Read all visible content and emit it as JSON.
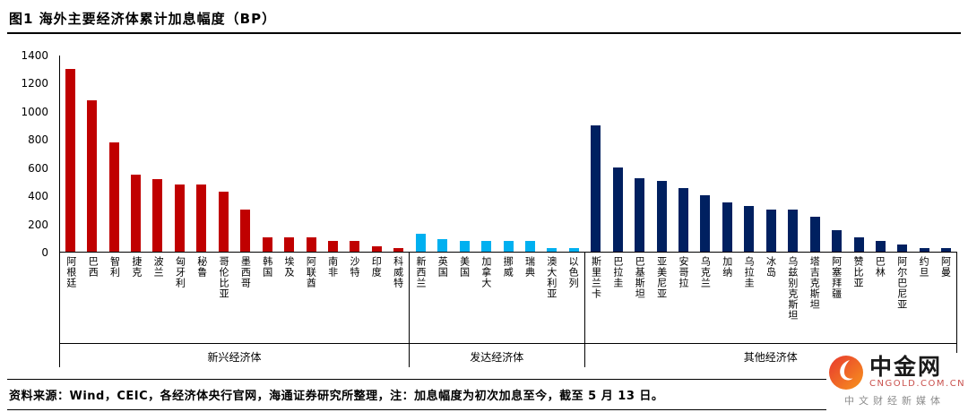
{
  "title": "图1  海外主要经济体累计加息幅度（BP）",
  "chart_data": {
    "type": "bar",
    "title": "图1  海外主要经济体累计加息幅度（BP）",
    "unit": "BP",
    "ylim": [
      0,
      1400
    ],
    "yticks": [
      0,
      200,
      400,
      600,
      800,
      1000,
      1200,
      1400
    ],
    "grid": false,
    "legend": "none",
    "groups": [
      {
        "name": "新兴经济体",
        "color": "#C00000",
        "categories": [
          "阿根廷",
          "巴西",
          "智利",
          "捷克",
          "波兰",
          "匈牙利",
          "秘鲁",
          "哥伦比亚",
          "墨西哥",
          "韩国",
          "埃及",
          "阿联酋",
          "南非",
          "沙特",
          "印度",
          "科威特"
        ],
        "values": [
          1300,
          1075,
          775,
          550,
          515,
          480,
          475,
          425,
          300,
          100,
          100,
          100,
          75,
          75,
          40,
          25
        ]
      },
      {
        "name": "发达经济体",
        "color": "#00B0F0",
        "categories": [
          "新西兰",
          "英国",
          "美国",
          "加拿大",
          "挪威",
          "瑞典",
          "澳大利亚",
          "以色列"
        ],
        "values": [
          125,
          90,
          75,
          75,
          75,
          75,
          25,
          25
        ]
      },
      {
        "name": "其他经济体",
        "color": "#002060",
        "categories": [
          "斯里兰卡",
          "巴拉圭",
          "巴基斯坦",
          "亚美尼亚",
          "安哥拉",
          "乌克兰",
          "加纳",
          "乌拉圭",
          "冰岛",
          "乌兹别克斯坦",
          "塔吉克斯坦",
          "阿塞拜疆",
          "赞比亚",
          "巴林",
          "阿尔巴尼亚",
          "约旦",
          "阿曼"
        ],
        "values": [
          900,
          600,
          525,
          500,
          450,
          400,
          350,
          325,
          300,
          300,
          250,
          150,
          100,
          75,
          50,
          25,
          25
        ]
      }
    ]
  },
  "footer": {
    "source_note": "资料来源：Wind，CEIC，各经济体央行官网，海通证券研究所整理，注：加息幅度为初次加息至今，截至 5 月 13 日。"
  },
  "logo": {
    "name": "中金网",
    "domain": "CNGOLD.COM.CN",
    "tagline": "中文财经新媒体"
  }
}
